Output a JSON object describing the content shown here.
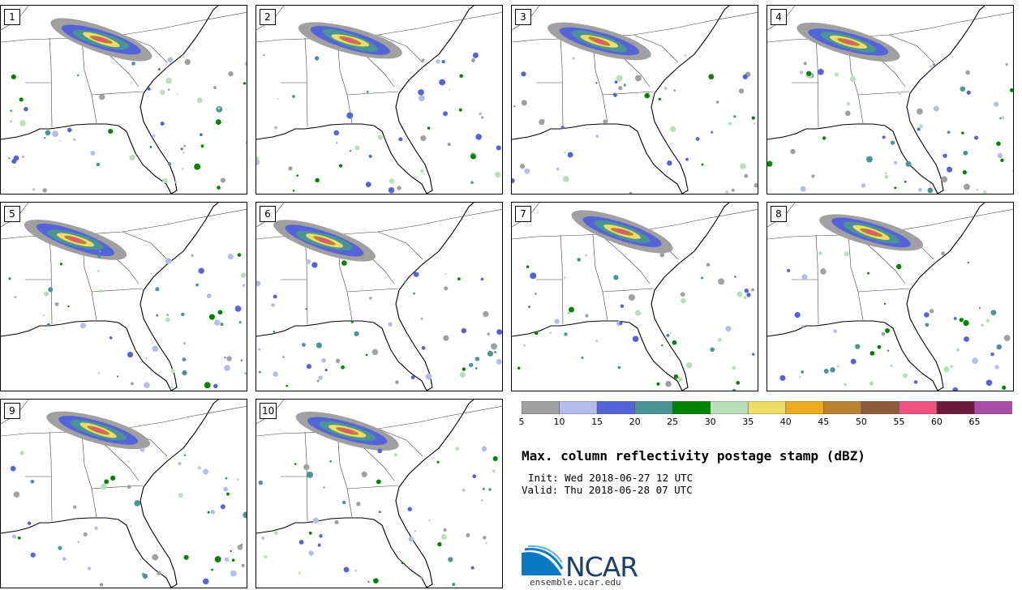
{
  "chart_data": {
    "type": "heatmap",
    "title": "Max. column reflectivity postage stamp (dBZ)",
    "init_time": "Init: Wed 2018-06-27 12 UTC",
    "valid_time": "Valid: Thu 2018-06-28 07 UTC",
    "members": [
      "1",
      "2",
      "3",
      "4",
      "5",
      "6",
      "7",
      "8",
      "9",
      "10"
    ],
    "colorbar": {
      "ticks": [
        "5",
        "10",
        "15",
        "20",
        "25",
        "30",
        "35",
        "40",
        "45",
        "50",
        "55",
        "60",
        "65"
      ],
      "colors": [
        "#a0a0a0",
        "#b4bcec",
        "#5563d9",
        "#4a9496",
        "#008400",
        "#b9dfba",
        "#eedd66",
        "#ecac1e",
        "#b98432",
        "#8b5a3c",
        "#ee5080",
        "#6e1a3a",
        "#a84ca6"
      ],
      "range": [
        5,
        70
      ]
    }
  },
  "branding": {
    "logo_text": "NCAR",
    "site": "ensemble.ucar.edu"
  }
}
